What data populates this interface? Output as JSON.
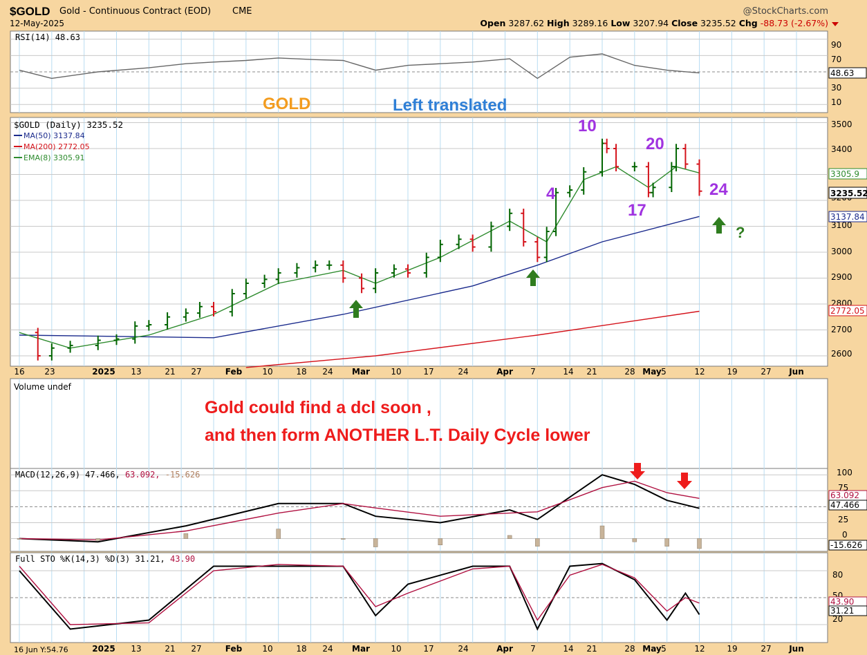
{
  "header": {
    "symbol": "$GOLD",
    "name": "Gold - Continuous Contract (EOD)",
    "exchange": "CME",
    "date": "12-May-2025",
    "brand": "@StockCharts.com",
    "open_label": "Open",
    "open": "3287.62",
    "high_label": "High",
    "high": "3289.16",
    "low_label": "Low",
    "low": "3207.94",
    "close_label": "Close",
    "close": "3235.52",
    "chg_label": "Chg",
    "chg": "-88.73 (-2.67%)"
  },
  "rsi": {
    "label": "RSI(14) 48.63",
    "ticks": [
      "90",
      "70",
      "30",
      "10"
    ],
    "value_tag": "48.63"
  },
  "annotations": {
    "gold": "GOLD",
    "left_translated": "Left translated",
    "day_counts": [
      "10",
      "20",
      "4",
      "17",
      "24"
    ],
    "question": "?",
    "note_line1": "Gold could find a dcl soon ,",
    "note_line2": "and then form ANOTHER L.T. Daily Cycle lower"
  },
  "price": {
    "legend_title": "$GOLD (Daily) 3235.52",
    "legend_ma50": "MA(50) 3137.84",
    "legend_ma200": "MA(200) 2772.05",
    "legend_ema8": "EMA(8) 3305.91",
    "ticks": [
      "3500",
      "3400",
      "3300",
      "3200",
      "3100",
      "3000",
      "2900",
      "2800",
      "2700",
      "2600"
    ],
    "tags": {
      "ema8": "3305.9",
      "close": "3235.52",
      "ma50": "3137.84",
      "ma200": "2772.05"
    }
  },
  "x_labels": [
    "16",
    "23",
    "2025",
    "13",
    "21",
    "27",
    "Feb",
    "10",
    "18",
    "24",
    "Mar",
    "10",
    "17",
    "24",
    "Apr",
    "7",
    "14",
    "21",
    "28",
    "May",
    "5",
    "12",
    "19",
    "27",
    "Jun"
  ],
  "volume": {
    "label": "Volume undef"
  },
  "macd": {
    "label_main": "MACD(12,26,9) 47.466,",
    "label_signal": "63.092,",
    "label_hist": "-15.626",
    "ticks": [
      "100",
      "75",
      "50",
      "25",
      "0"
    ],
    "tags": {
      "signal": "63.092",
      "macd": "47.466",
      "hist": "-15.626"
    }
  },
  "sto": {
    "label_main": "Full STO %K(14,3) %D(3) 31.21,",
    "label_d": "43.90",
    "ticks": [
      "80",
      "50",
      "20"
    ],
    "tags": {
      "d": "43.90",
      "k": "31.21"
    },
    "cursor_readout": "16 Jun Y:54.76"
  },
  "colors": {
    "background": "#f7d6a0",
    "panel": "#ffffff",
    "up_bar": "#006400",
    "down_bar": "#d4121a",
    "ma50": "#1a2a8c",
    "ma200": "#d4121a",
    "ema8": "#2e8b2e",
    "annotation_red": "#ee1c1c",
    "annotation_purple": "#a033e0",
    "gold_orange": "#f39c1f",
    "left_blue": "#2f7fd6",
    "arrow_green": "#2f7d1f"
  },
  "chart_data": [
    {
      "type": "line",
      "title": "RSI(14) 48.63",
      "ylim": [
        0,
        100
      ],
      "series": [
        {
          "name": "RSI(14)",
          "x": [
            "2024-12-16",
            "2024-12-23",
            "2025-01-02",
            "2025-01-13",
            "2025-01-21",
            "2025-01-27",
            "2025-02-03",
            "2025-02-10",
            "2025-02-18",
            "2025-02-24",
            "2025-03-03",
            "2025-03-10",
            "2025-03-17",
            "2025-03-24",
            "2025-04-01",
            "2025-04-07",
            "2025-04-14",
            "2025-04-21",
            "2025-04-28",
            "2025-05-05",
            "2025-05-12"
          ],
          "values": [
            52,
            42,
            50,
            55,
            60,
            62,
            64,
            67,
            65,
            64,
            52,
            58,
            60,
            62,
            66,
            42,
            68,
            72,
            58,
            52,
            48.63
          ]
        }
      ]
    },
    {
      "type": "line",
      "title": "$GOLD (Daily) 3235.52",
      "ylim": [
        2560,
        3520
      ],
      "series": [
        {
          "name": "$GOLD",
          "x": [
            "2024-12-16",
            "2024-12-20",
            "2024-12-23",
            "2024-12-27",
            "2025-01-02",
            "2025-01-06",
            "2025-01-10",
            "2025-01-13",
            "2025-01-17",
            "2025-01-21",
            "2025-01-24",
            "2025-01-27",
            "2025-01-31",
            "2025-02-03",
            "2025-02-07",
            "2025-02-10",
            "2025-02-14",
            "2025-02-18",
            "2025-02-21",
            "2025-02-24",
            "2025-02-28",
            "2025-03-03",
            "2025-03-07",
            "2025-03-10",
            "2025-03-14",
            "2025-03-17",
            "2025-03-21",
            "2025-03-24",
            "2025-03-28",
            "2025-04-01",
            "2025-04-04",
            "2025-04-07",
            "2025-04-09",
            "2025-04-11",
            "2025-04-14",
            "2025-04-17",
            "2025-04-21",
            "2025-04-22",
            "2025-04-24",
            "2025-04-28",
            "2025-05-01",
            "2025-05-02",
            "2025-05-06",
            "2025-05-07",
            "2025-05-09",
            "2025-05-12"
          ],
          "values": [
            2690,
            2600,
            2630,
            2640,
            2660,
            2665,
            2715,
            2720,
            2750,
            2765,
            2790,
            2770,
            2840,
            2880,
            2895,
            2920,
            2940,
            2950,
            2950,
            2900,
            2860,
            2920,
            2935,
            2920,
            2980,
            3030,
            3050,
            3020,
            3100,
            3150,
            3040,
            2980,
            3080,
            3230,
            3240,
            3310,
            3420,
            3400,
            3330,
            3330,
            3230,
            3250,
            3330,
            3400,
            3340,
            3235.52
          ]
        },
        {
          "name": "MA(50)",
          "x": [
            "2024-12-16",
            "2025-01-27",
            "2025-02-24",
            "2025-03-24",
            "2025-04-07",
            "2025-04-21",
            "2025-05-12"
          ],
          "values": [
            2680,
            2670,
            2760,
            2870,
            2950,
            3040,
            3137.84
          ]
        },
        {
          "name": "MA(200)",
          "x": [
            "2025-02-03",
            "2025-03-03",
            "2025-04-07",
            "2025-05-12"
          ],
          "values": [
            2555,
            2600,
            2680,
            2772.05
          ]
        },
        {
          "name": "EMA(8)",
          "x": [
            "2024-12-16",
            "2024-12-27",
            "2025-01-13",
            "2025-01-27",
            "2025-02-10",
            "2025-02-24",
            "2025-03-03",
            "2025-03-17",
            "2025-04-01",
            "2025-04-09",
            "2025-04-17",
            "2025-04-24",
            "2025-05-01",
            "2025-05-07",
            "2025-05-12"
          ],
          "values": [
            2690,
            2630,
            2680,
            2760,
            2880,
            2930,
            2880,
            2980,
            3120,
            3040,
            3280,
            3330,
            3250,
            3330,
            3305.91
          ]
        }
      ]
    },
    {
      "type": "line",
      "title": "MACD(12,26,9) 47.466, 63.092, -15.626",
      "ylim": [
        -20,
        110
      ],
      "series": [
        {
          "name": "MACD",
          "x": [
            "2024-12-16",
            "2025-01-02",
            "2025-01-21",
            "2025-02-10",
            "2025-02-24",
            "2025-03-03",
            "2025-03-17",
            "2025-04-01",
            "2025-04-07",
            "2025-04-21",
            "2025-04-28",
            "2025-05-05",
            "2025-05-12"
          ],
          "values": [
            0,
            -5,
            20,
            55,
            55,
            35,
            25,
            45,
            30,
            100,
            85,
            60,
            47.466
          ]
        },
        {
          "name": "Signal",
          "x": [
            "2024-12-16",
            "2025-01-02",
            "2025-01-21",
            "2025-02-10",
            "2025-02-24",
            "2025-03-03",
            "2025-03-17",
            "2025-04-01",
            "2025-04-07",
            "2025-04-21",
            "2025-04-28",
            "2025-05-05",
            "2025-05-12"
          ],
          "values": [
            0,
            -2,
            12,
            40,
            55,
            48,
            35,
            40,
            42,
            80,
            90,
            72,
            63.092
          ]
        }
      ]
    },
    {
      "type": "line",
      "title": "Full STO %K(14,3) %D(3) 31.21, 43.90",
      "ylim": [
        0,
        100
      ],
      "series": [
        {
          "name": "%K",
          "x": [
            "2024-12-16",
            "2024-12-27",
            "2025-01-13",
            "2025-01-27",
            "2025-02-10",
            "2025-02-24",
            "2025-03-03",
            "2025-03-10",
            "2025-03-24",
            "2025-04-01",
            "2025-04-07",
            "2025-04-14",
            "2025-04-21",
            "2025-04-28",
            "2025-05-05",
            "2025-05-09",
            "2025-05-12"
          ],
          "values": [
            80,
            15,
            25,
            85,
            85,
            85,
            30,
            65,
            85,
            85,
            15,
            85,
            88,
            70,
            25,
            55,
            31.21
          ]
        },
        {
          "name": "%D",
          "x": [
            "2024-12-16",
            "2024-12-27",
            "2025-01-13",
            "2025-01-27",
            "2025-02-10",
            "2025-02-24",
            "2025-03-03",
            "2025-03-10",
            "2025-03-24",
            "2025-04-01",
            "2025-04-07",
            "2025-04-14",
            "2025-04-21",
            "2025-04-28",
            "2025-05-05",
            "2025-05-09",
            "2025-05-12"
          ],
          "values": [
            85,
            20,
            22,
            80,
            87,
            85,
            40,
            55,
            82,
            85,
            25,
            75,
            87,
            72,
            35,
            50,
            43.9
          ]
        }
      ]
    }
  ]
}
